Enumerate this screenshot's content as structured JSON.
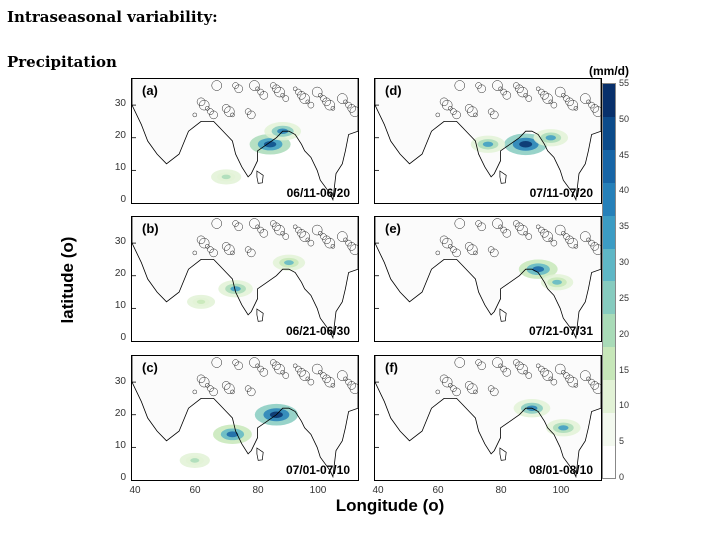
{
  "slide": {
    "title": "Intraseasonal variability:",
    "subtitle": "Precipitation"
  },
  "axes": {
    "ylabel": "latitude (o)",
    "xlabel": "Longitude (o)",
    "yticks": [
      "30",
      "20",
      "10",
      "0"
    ],
    "xticks": [
      "40",
      "60",
      "80",
      "100"
    ]
  },
  "colorbar": {
    "unit": "(mm/d)",
    "ticks": [
      "55",
      "50",
      "45",
      "40",
      "35",
      "30",
      "25",
      "20",
      "15",
      "10",
      "5",
      "0"
    ],
    "colors": [
      "#ffffff",
      "#f3f9ef",
      "#e2f2d6",
      "#c7e7b9",
      "#a9dbb8",
      "#86cbbf",
      "#5fb7c6",
      "#3c9cc4",
      "#2680b9",
      "#1765a6",
      "#0c4b8a",
      "#08306b"
    ]
  },
  "panels": [
    {
      "label": "(a)",
      "date": "06/11-06/20",
      "blobs": [
        {
          "lon": 84,
          "lat": 18,
          "intensity": 0.9
        },
        {
          "lon": 88,
          "lat": 22,
          "intensity": 0.7
        },
        {
          "lon": 70,
          "lat": 8,
          "intensity": 0.4
        }
      ]
    },
    {
      "label": "(b)",
      "date": "06/21-06/30",
      "blobs": [
        {
          "lon": 73,
          "lat": 16,
          "intensity": 0.6
        },
        {
          "lon": 90,
          "lat": 24,
          "intensity": 0.5
        },
        {
          "lon": 62,
          "lat": 12,
          "intensity": 0.3
        }
      ]
    },
    {
      "label": "(c)",
      "date": "07/01-07/10",
      "blobs": [
        {
          "lon": 86,
          "lat": 20,
          "intensity": 1.0
        },
        {
          "lon": 72,
          "lat": 14,
          "intensity": 0.8
        },
        {
          "lon": 60,
          "lat": 6,
          "intensity": 0.4
        }
      ]
    },
    {
      "label": "(d)",
      "date": "07/11-07/20",
      "blobs": [
        {
          "lon": 88,
          "lat": 18,
          "intensity": 1.0
        },
        {
          "lon": 76,
          "lat": 18,
          "intensity": 0.6
        },
        {
          "lon": 96,
          "lat": 20,
          "intensity": 0.6
        }
      ]
    },
    {
      "label": "(e)",
      "date": "07/21-07/31",
      "blobs": [
        {
          "lon": 92,
          "lat": 22,
          "intensity": 0.8
        },
        {
          "lon": 98,
          "lat": 18,
          "intensity": 0.5
        }
      ]
    },
    {
      "label": "(f)",
      "date": "08/01-08/10",
      "blobs": [
        {
          "lon": 90,
          "lat": 22,
          "intensity": 0.7
        },
        {
          "lon": 100,
          "lat": 16,
          "intensity": 0.6
        }
      ]
    }
  ]
}
